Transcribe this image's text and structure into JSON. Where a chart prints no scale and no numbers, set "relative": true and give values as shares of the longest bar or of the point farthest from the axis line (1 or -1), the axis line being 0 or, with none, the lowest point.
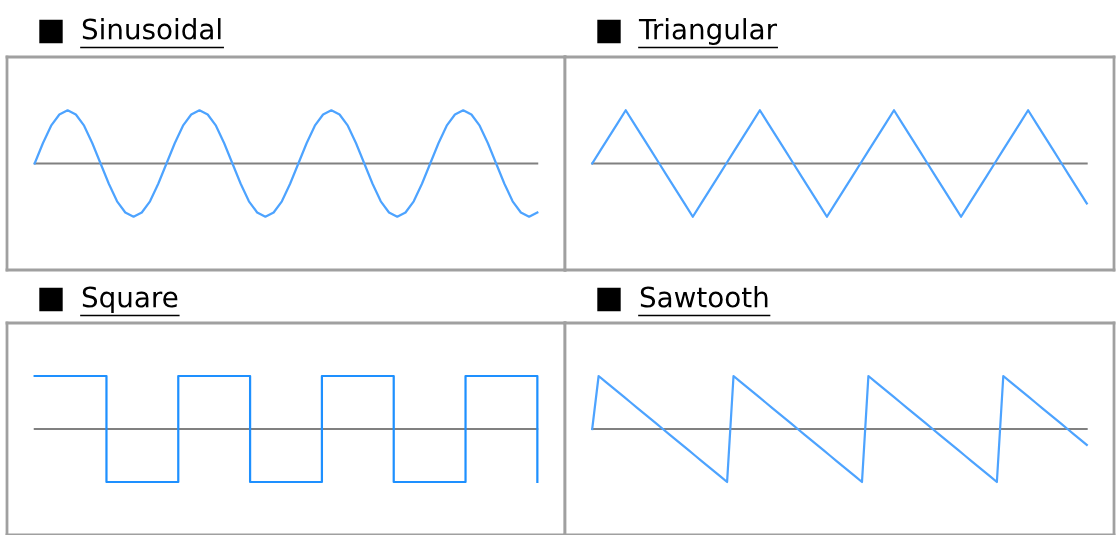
{
  "chart_data": [
    {
      "type": "line",
      "title": "Sinusoidal",
      "relative": true,
      "tick_labels": false,
      "categories": [
        null,
        null,
        null,
        null,
        null,
        null,
        null,
        null,
        null,
        null,
        null,
        null,
        null,
        null,
        null,
        null,
        null,
        null,
        null,
        null,
        null,
        null,
        null,
        null,
        null,
        null,
        null,
        null,
        null,
        null,
        null,
        null,
        null,
        null,
        null,
        null,
        null,
        null,
        null,
        null,
        null,
        null,
        null,
        null,
        null,
        null,
        null,
        null,
        null,
        null,
        null,
        null,
        null,
        null,
        null,
        null,
        null,
        null,
        null,
        null,
        null,
        null
      ],
      "series": [
        {
          "color": "#4da3ff",
          "values": [
            0,
            0.38,
            0.71,
            0.92,
            1,
            0.92,
            0.71,
            0.38,
            0,
            -0.38,
            -0.71,
            -0.92,
            -1,
            -0.92,
            -0.71,
            -0.38,
            0,
            0.38,
            0.71,
            0.92,
            1,
            0.92,
            0.71,
            0.38,
            0,
            -0.38,
            -0.71,
            -0.92,
            -1,
            -0.92,
            -0.71,
            -0.38,
            0,
            0.38,
            0.71,
            0.92,
            1,
            0.92,
            0.71,
            0.38,
            0,
            -0.38,
            -0.71,
            -0.92,
            -1,
            -0.92,
            -0.71,
            -0.38,
            0,
            0.38,
            0.71,
            0.92,
            1,
            0.92,
            0.71,
            0.38,
            0,
            -0.38,
            -0.71,
            -0.92,
            -1,
            -0.92
          ]
        }
      ]
    },
    {
      "type": "line",
      "title": "Triangular",
      "relative": true,
      "tick_labels": false,
      "categories": [
        null,
        null,
        null,
        null,
        null,
        null,
        null,
        null,
        null,
        null,
        null,
        null,
        null,
        null,
        null,
        null,
        null,
        null,
        null,
        null,
        null,
        null,
        null,
        null,
        null,
        null,
        null,
        null,
        null,
        null,
        null,
        null,
        null,
        null,
        null,
        null,
        null,
        null,
        null,
        null,
        null,
        null,
        null,
        null,
        null,
        null,
        null,
        null,
        null,
        null,
        null,
        null,
        null,
        null,
        null,
        null,
        null,
        null,
        null,
        null
      ],
      "series": [
        {
          "color": "#4da3ff",
          "values": [
            0,
            0.25,
            0.5,
            0.75,
            1,
            0.75,
            0.5,
            0.25,
            0,
            -0.25,
            -0.5,
            -0.75,
            -1,
            -0.75,
            -0.5,
            -0.25,
            0,
            0.25,
            0.5,
            0.75,
            1,
            0.75,
            0.5,
            0.25,
            0,
            -0.25,
            -0.5,
            -0.75,
            -1,
            -0.75,
            -0.5,
            -0.25,
            0,
            0.25,
            0.5,
            0.75,
            1,
            0.75,
            0.5,
            0.25,
            0,
            -0.25,
            -0.5,
            -0.75,
            -1,
            -0.75,
            -0.5,
            -0.25,
            0,
            0.25,
            0.5,
            0.75,
            1,
            0.75,
            0.5,
            0.25,
            0,
            -0.25,
            -0.5,
            -0.75
          ]
        }
      ]
    },
    {
      "type": "step",
      "title": "Square",
      "relative": true,
      "tick_labels": false,
      "categories": [
        null,
        null,
        null,
        null,
        null,
        null,
        null,
        null
      ],
      "series": [
        {
          "color": "#1e90ff",
          "values": [
            1,
            -1,
            1,
            -1,
            1,
            -1,
            1,
            -1
          ]
        }
      ]
    },
    {
      "type": "line",
      "title": "Sawtooth",
      "relative": true,
      "tick_labels": false,
      "categories": [
        null,
        null,
        null,
        null,
        null,
        null,
        null,
        null,
        null,
        null,
        null,
        null,
        null,
        null,
        null,
        null,
        null,
        null,
        null,
        null,
        null,
        null,
        null,
        null,
        null,
        null,
        null,
        null,
        null,
        null,
        null,
        null,
        null,
        null,
        null,
        null,
        null,
        null,
        null,
        null,
        null,
        null,
        null,
        null,
        null,
        null,
        null,
        null,
        null,
        null,
        null,
        null,
        null,
        null,
        null,
        null,
        null,
        null,
        null,
        null,
        null,
        null,
        null,
        null,
        null,
        null,
        null,
        null,
        null,
        null,
        null,
        null,
        null,
        null,
        null,
        null,
        null,
        null
      ],
      "series": [
        {
          "color": "#4da3ff",
          "values": [
            0,
            1,
            0.9,
            0.8,
            0.7,
            0.6,
            0.5,
            0.4,
            0.3,
            0.2,
            0.1,
            0,
            -0.1,
            -0.2,
            -0.3,
            -0.4,
            -0.5,
            -0.6,
            -0.7,
            -0.8,
            -0.9,
            -1,
            1,
            0.9,
            0.8,
            0.7,
            0.6,
            0.5,
            0.4,
            0.3,
            0.2,
            0.1,
            0,
            -0.1,
            -0.2,
            -0.3,
            -0.4,
            -0.5,
            -0.6,
            -0.7,
            -0.8,
            -0.9,
            -1,
            1,
            0.9,
            0.8,
            0.7,
            0.6,
            0.5,
            0.4,
            0.3,
            0.2,
            0.1,
            0,
            -0.1,
            -0.2,
            -0.3,
            -0.4,
            -0.5,
            -0.6,
            -0.7,
            -0.8,
            -0.9,
            -1,
            1,
            0.9,
            0.8,
            0.7,
            0.6,
            0.5,
            0.4,
            0.3,
            0.2,
            0.1,
            0,
            -0.1,
            -0.2,
            -0.3
          ]
        }
      ]
    }
  ]
}
